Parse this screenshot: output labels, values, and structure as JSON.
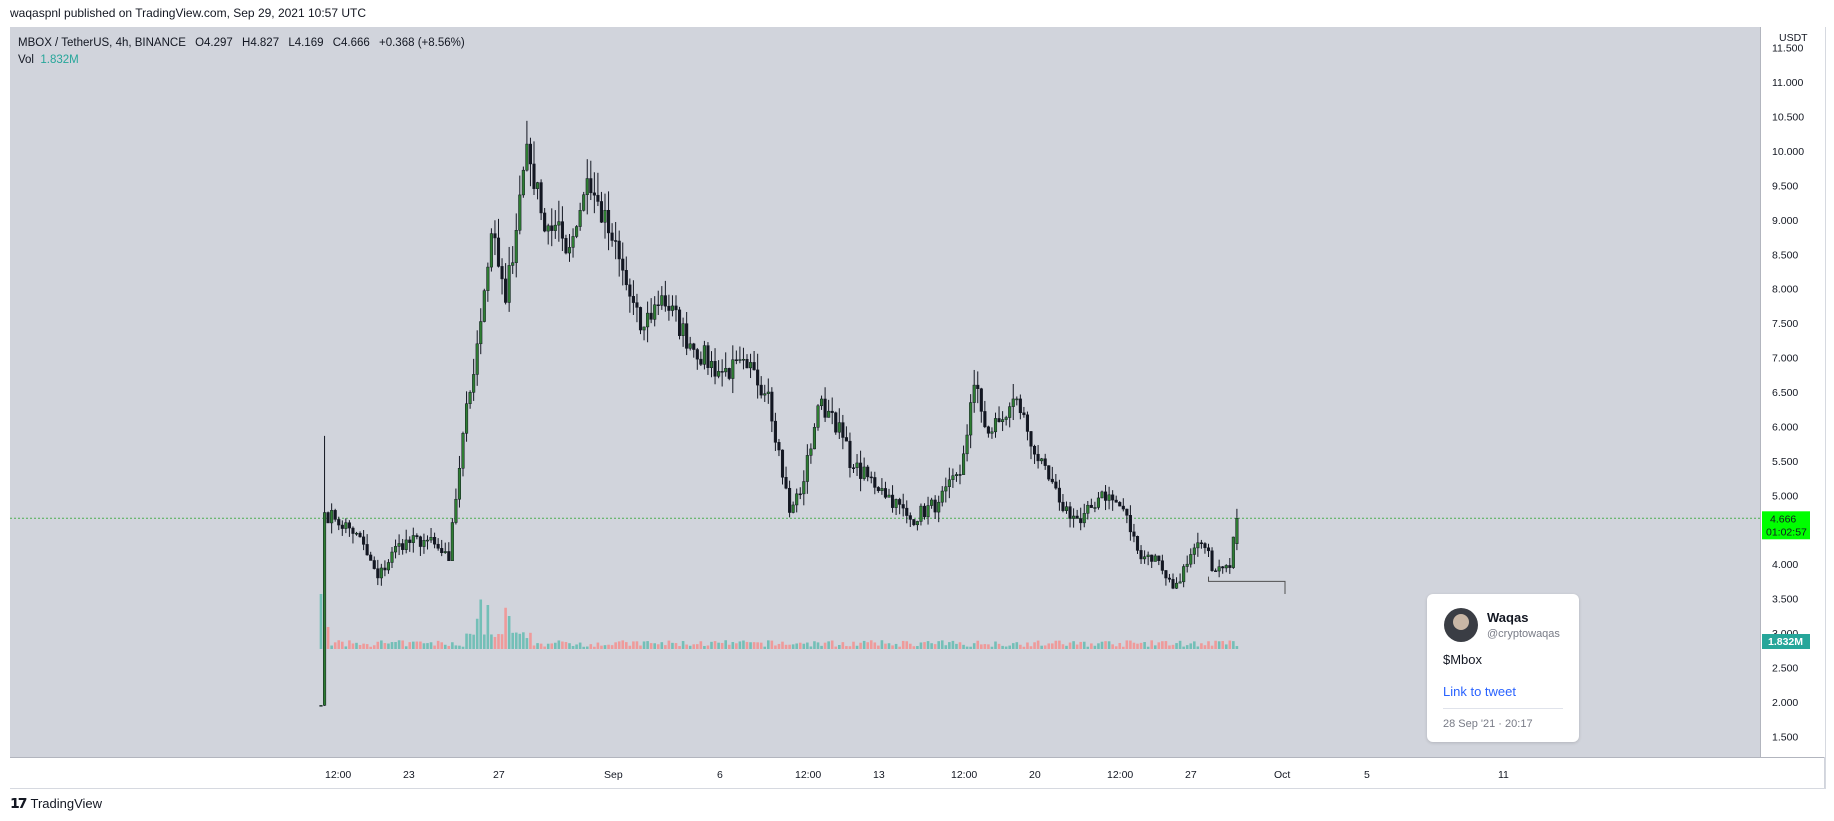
{
  "header": {
    "text": "waqaspnl published on TradingView.com, Sep 29, 2021 10:57 UTC"
  },
  "legend": {
    "symbol": "MBOX / TetherUS, 4h, BINANCE",
    "open": "O4.297",
    "high": "H4.827",
    "low": "L4.169",
    "close": "C4.666",
    "change": "+0.368 (+8.56%)",
    "vol_label": "Vol",
    "vol_value": "1.832M"
  },
  "price_axis": {
    "currency": "USDT",
    "ticks": [
      "11.500",
      "11.000",
      "10.500",
      "10.000",
      "9.500",
      "9.000",
      "8.500",
      "8.000",
      "7.500",
      "7.000",
      "6.500",
      "6.000",
      "5.500",
      "5.000",
      "4.500",
      "4.000",
      "3.500",
      "3.000",
      "2.500",
      "2.000",
      "1.500"
    ],
    "last_price": "4.666",
    "countdown": "01:02:57",
    "volume_badge": "1.832M"
  },
  "time_axis": {
    "ticks": [
      "12:00",
      "23",
      "27",
      "Sep",
      "6",
      "12:00",
      "13",
      "12:00",
      "20",
      "12:00",
      "27",
      "Oct",
      "5",
      "11"
    ]
  },
  "tweet": {
    "name": "Waqas",
    "handle": "@cryptowaqas",
    "text": "$Mbox",
    "link": "Link to tweet",
    "date": "28 Sep '21 · 20:17"
  },
  "footer": {
    "brand": "TradingView"
  },
  "colors": {
    "up": "#2e7d32",
    "down": "#131722",
    "vol_up": "#73bfb7",
    "vol_down": "#ef9a9a",
    "last_price_bg": "#00ff00",
    "plot_bg": "#d1d4dc"
  },
  "chart_data": {
    "type": "candlestick",
    "symbol": "MBOX / TetherUS",
    "interval": "4h",
    "y_range": [
      1.2,
      11.8
    ],
    "anchors": [
      {
        "t": 0,
        "price": 1.95
      },
      {
        "t": 1,
        "price": 4.75
      },
      {
        "t": 4,
        "price": 4.65
      },
      {
        "t": 10,
        "price": 4.45
      },
      {
        "t": 16,
        "price": 3.8
      },
      {
        "t": 22,
        "price": 4.3
      },
      {
        "t": 30,
        "price": 4.35
      },
      {
        "t": 36,
        "price": 4.05
      },
      {
        "t": 40,
        "price": 5.9
      },
      {
        "t": 44,
        "price": 7.2
      },
      {
        "t": 48,
        "price": 8.8
      },
      {
        "t": 52,
        "price": 7.8
      },
      {
        "t": 58,
        "price": 10.1
      },
      {
        "t": 62,
        "price": 9.1
      },
      {
        "t": 70,
        "price": 8.6
      },
      {
        "t": 75,
        "price": 9.6
      },
      {
        "t": 82,
        "price": 8.7
      },
      {
        "t": 90,
        "price": 7.4
      },
      {
        "t": 96,
        "price": 7.9
      },
      {
        "t": 104,
        "price": 7.2
      },
      {
        "t": 112,
        "price": 6.8
      },
      {
        "t": 120,
        "price": 6.85
      },
      {
        "t": 126,
        "price": 6.5
      },
      {
        "t": 132,
        "price": 4.75
      },
      {
        "t": 136,
        "price": 5.2
      },
      {
        "t": 140,
        "price": 6.3
      },
      {
        "t": 144,
        "price": 6.2
      },
      {
        "t": 150,
        "price": 5.4
      },
      {
        "t": 158,
        "price": 5.1
      },
      {
        "t": 166,
        "price": 4.65
      },
      {
        "t": 174,
        "price": 4.9
      },
      {
        "t": 180,
        "price": 5.3
      },
      {
        "t": 184,
        "price": 6.6
      },
      {
        "t": 188,
        "price": 5.9
      },
      {
        "t": 192,
        "price": 6.1
      },
      {
        "t": 196,
        "price": 6.4
      },
      {
        "t": 202,
        "price": 5.5
      },
      {
        "t": 208,
        "price": 4.9
      },
      {
        "t": 214,
        "price": 4.6
      },
      {
        "t": 220,
        "price": 5.05
      },
      {
        "t": 226,
        "price": 4.8
      },
      {
        "t": 230,
        "price": 4.2
      },
      {
        "t": 236,
        "price": 4.05
      },
      {
        "t": 240,
        "price": 3.65
      },
      {
        "t": 244,
        "price": 4.0
      },
      {
        "t": 248,
        "price": 4.3
      },
      {
        "t": 252,
        "price": 3.9
      },
      {
        "t": 256,
        "price": 3.95
      },
      {
        "t": 258,
        "price": 4.666
      }
    ],
    "volume_spikes": [
      {
        "t": 0,
        "value": 1.0
      },
      {
        "t": 1,
        "value": 0.65
      },
      {
        "t": 2,
        "value": 0.4
      },
      {
        "t": 44,
        "value": 0.55
      },
      {
        "t": 45,
        "value": 0.9
      },
      {
        "t": 47,
        "value": 0.8
      },
      {
        "t": 52,
        "value": 0.75
      },
      {
        "t": 53,
        "value": 0.6
      }
    ]
  }
}
